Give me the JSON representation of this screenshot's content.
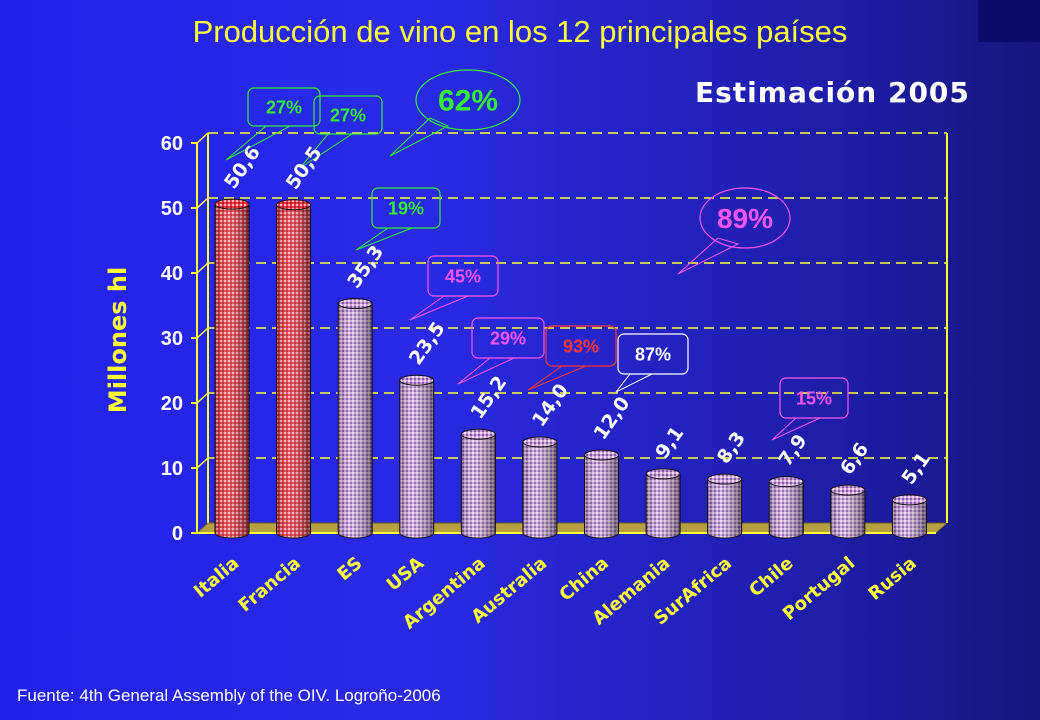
{
  "chart_data": {
    "type": "bar",
    "title": "Producción de vino en los 12 principales países",
    "subtitle": "Estimación 2005",
    "ylabel": "Millones hl",
    "xlabel": "",
    "ylim": [
      0,
      60
    ],
    "yticks": [
      "0",
      "10",
      "20",
      "30",
      "40",
      "50",
      "60"
    ],
    "grid": true,
    "categories": [
      "Italia",
      "Francia",
      "ES",
      "USA",
      "Argentina",
      "Australia",
      "China",
      "Alemania",
      "SurAfrica",
      "Chile",
      "Portugal",
      "Rusia"
    ],
    "values": [
      50.6,
      50.5,
      35.3,
      23.5,
      15.2,
      14.0,
      12.0,
      9.1,
      8.3,
      7.9,
      6.6,
      5.1
    ],
    "value_labels": [
      "50,6",
      "50,5",
      "35,3",
      "23,5",
      "15,2",
      "14,0",
      "12,0",
      "9,1",
      "8,3",
      "7,9",
      "6,6",
      "5,1"
    ],
    "bar_colors": [
      "#e0303a",
      "#e0303a",
      "#c8a8d8",
      "#c8a8d8",
      "#c8a8d8",
      "#c8a8d8",
      "#c8a8d8",
      "#c8a8d8",
      "#c8a8d8",
      "#c8a8d8",
      "#c8a8d8",
      "#c8a8d8"
    ],
    "annotations": [
      {
        "text": "27%",
        "color": "#33ee33"
      },
      {
        "text": "27%",
        "color": "#33ee33"
      },
      {
        "text": "62%",
        "color": "#33ee33"
      },
      {
        "text": "19%",
        "color": "#33ee33"
      },
      {
        "text": "45%",
        "color": "#ff55ee"
      },
      {
        "text": "29%",
        "color": "#ff55ee"
      },
      {
        "text": "93%",
        "color": "#ff3333"
      },
      {
        "text": "87%",
        "color": "#ffffff"
      },
      {
        "text": "15%",
        "color": "#ff55ee"
      },
      {
        "text": "89%",
        "color": "#ff55ee"
      }
    ]
  },
  "source": "Fuente: 4th General Assembly of the OIV. Logroño-2006",
  "colors": {
    "background": "#2222ee",
    "title": "#ffff33",
    "axis": "#ffff33",
    "grid": "#ffff33",
    "floor": "#b8a040"
  }
}
